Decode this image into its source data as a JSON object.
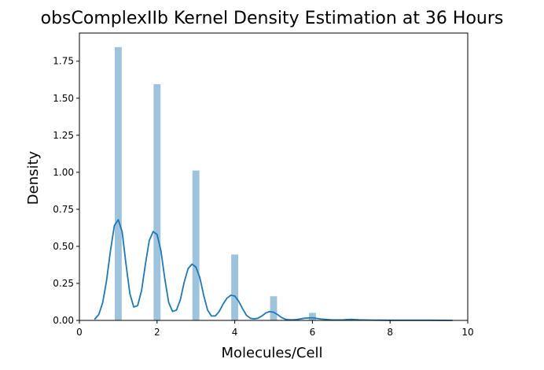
{
  "chart_data": {
    "type": "histogram+kde",
    "title": "obsComplexIIb Kernel Density Estimation at 36 Hours",
    "xlabel": "Molecules/Cell",
    "ylabel": "Density",
    "xlim": [
      -0.0,
      10.0
    ],
    "ylim": [
      0,
      1.94
    ],
    "grid": false,
    "xticks": [
      0,
      2,
      4,
      6,
      8,
      10
    ],
    "yticks": [
      0.0,
      0.25,
      0.5,
      0.75,
      1.0,
      1.25,
      1.5,
      1.75
    ],
    "ytick_labels": [
      "0.00",
      "0.25",
      "0.50",
      "0.75",
      "1.00",
      "1.25",
      "1.50",
      "1.75"
    ],
    "bars": [
      {
        "x": 1,
        "value": 1.845
      },
      {
        "x": 2,
        "value": 1.595
      },
      {
        "x": 3,
        "value": 1.012
      },
      {
        "x": 4,
        "value": 0.445
      },
      {
        "x": 5,
        "value": 0.163
      },
      {
        "x": 6,
        "value": 0.051
      },
      {
        "x": 7,
        "value": 0.009
      },
      {
        "x": 8,
        "value": 0.002
      },
      {
        "x": 9,
        "value": 0.001
      }
    ],
    "bar_width": 0.18,
    "kde": {
      "x": [
        0.4,
        0.5,
        0.6,
        0.7,
        0.8,
        0.9,
        1.0,
        1.1,
        1.2,
        1.3,
        1.4,
        1.5,
        1.6,
        1.7,
        1.8,
        1.9,
        2.0,
        2.1,
        2.2,
        2.3,
        2.4,
        2.5,
        2.6,
        2.7,
        2.8,
        2.9,
        3.0,
        3.1,
        3.2,
        3.3,
        3.4,
        3.5,
        3.6,
        3.7,
        3.8,
        3.9,
        4.0,
        4.1,
        4.2,
        4.3,
        4.4,
        4.5,
        4.6,
        4.7,
        4.8,
        4.9,
        5.0,
        5.1,
        5.2,
        5.3,
        5.4,
        5.5,
        5.6,
        5.8,
        6.0,
        6.2,
        6.5,
        6.8,
        7.0,
        7.2,
        7.5,
        8.0,
        8.5,
        9.0,
        9.6
      ],
      "y": [
        0.01,
        0.04,
        0.12,
        0.27,
        0.47,
        0.64,
        0.68,
        0.6,
        0.38,
        0.18,
        0.09,
        0.1,
        0.2,
        0.38,
        0.54,
        0.6,
        0.58,
        0.47,
        0.28,
        0.12,
        0.06,
        0.07,
        0.14,
        0.26,
        0.35,
        0.38,
        0.36,
        0.29,
        0.17,
        0.07,
        0.03,
        0.03,
        0.06,
        0.11,
        0.15,
        0.17,
        0.165,
        0.13,
        0.08,
        0.035,
        0.015,
        0.01,
        0.015,
        0.03,
        0.05,
        0.06,
        0.055,
        0.04,
        0.02,
        0.008,
        0.004,
        0.004,
        0.006,
        0.015,
        0.018,
        0.01,
        0.003,
        0.004,
        0.007,
        0.004,
        0.002,
        0.001,
        0.001,
        0.001,
        0.0
      ]
    },
    "colors": {
      "bars": "#9ec3dd",
      "kde": "#1f77b4",
      "axes": "#000000"
    }
  }
}
